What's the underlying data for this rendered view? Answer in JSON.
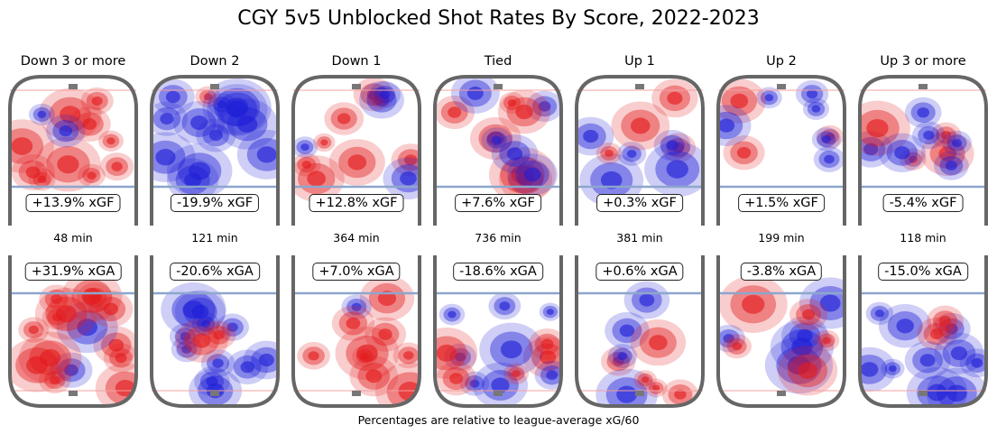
{
  "chart_data": {
    "type": "heatmap",
    "title": "CGY 5v5 Unblocked Shot Rates By Score, 2022-2023",
    "footnote": "Percentages are relative to league-average xG/60",
    "panels": [
      {
        "label": "Down 3 or more",
        "xgf": "+13.9% xGF",
        "xgf_pct": 13.9,
        "minutes": "48 min",
        "minutes_value": 48,
        "xga": "+31.9% xGA",
        "xga_pct": 31.9
      },
      {
        "label": "Down 2",
        "xgf": "-19.9% xGF",
        "xgf_pct": -19.9,
        "minutes": "121 min",
        "minutes_value": 121,
        "xga": "-20.6% xGA",
        "xga_pct": -20.6
      },
      {
        "label": "Down 1",
        "xgf": "+12.8% xGF",
        "xgf_pct": 12.8,
        "minutes": "364 min",
        "minutes_value": 364,
        "xga": "+7.0% xGA",
        "xga_pct": 7.0
      },
      {
        "label": "Tied",
        "xgf": "+7.6% xGF",
        "xgf_pct": 7.6,
        "minutes": "736 min",
        "minutes_value": 736,
        "xga": "-18.6% xGA",
        "xga_pct": -18.6
      },
      {
        "label": "Up 1",
        "xgf": "+0.3% xGF",
        "xgf_pct": 0.3,
        "minutes": "381 min",
        "minutes_value": 381,
        "xga": "+0.6% xGA",
        "xga_pct": 0.6
      },
      {
        "label": "Up 2",
        "xgf": "+1.5% xGF",
        "xgf_pct": 1.5,
        "minutes": "199 min",
        "minutes_value": 199,
        "xga": "-3.8% xGA",
        "xga_pct": -3.8
      },
      {
        "label": "Up 3 or more",
        "xgf": "-5.4% xGF",
        "xgf_pct": -5.4,
        "minutes": "118 min",
        "minutes_value": 118,
        "xga": "-15.0% xGA",
        "xga_pct": -15.0
      }
    ],
    "colormap": {
      "above_average": "#e31a1c",
      "below_average": "#1f1fd6",
      "neutral": "#ffffff",
      "rink_border": "#666666"
    }
  }
}
